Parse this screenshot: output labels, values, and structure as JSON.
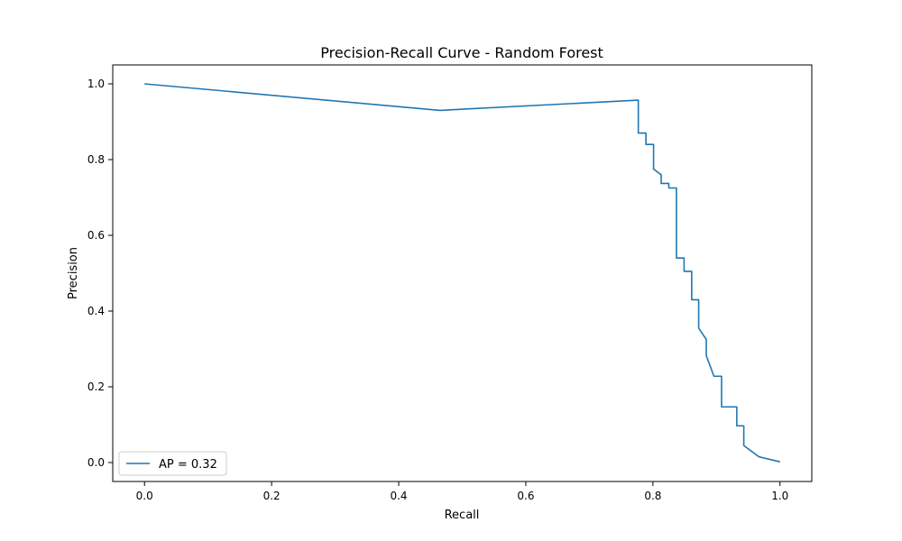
{
  "chart_data": {
    "type": "line",
    "title": "Precision-Recall Curve - Random Forest",
    "xlabel": "Recall",
    "ylabel": "Precision",
    "xlim": [
      -0.05,
      1.05
    ],
    "ylim": [
      -0.05,
      1.05
    ],
    "xticks": [
      0.0,
      0.2,
      0.4,
      0.6,
      0.8,
      1.0
    ],
    "xtick_labels": [
      "0.0",
      "0.2",
      "0.4",
      "0.6",
      "0.8",
      "1.0"
    ],
    "yticks": [
      0.0,
      0.2,
      0.4,
      0.6,
      0.8,
      1.0
    ],
    "ytick_labels": [
      "0.0",
      "0.2",
      "0.4",
      "0.6",
      "0.8",
      "1.0"
    ],
    "grid": false,
    "legend_position": "lower-left",
    "series": [
      {
        "name": "AP = 0.32",
        "color": "#1f77b4",
        "x": [
          0.0,
          0.465,
          0.777,
          0.777,
          0.789,
          0.789,
          0.801,
          0.801,
          0.813,
          0.813,
          0.825,
          0.825,
          0.837,
          0.837,
          0.849,
          0.849,
          0.861,
          0.861,
          0.872,
          0.872,
          0.884,
          0.884,
          0.896,
          0.896,
          0.908,
          0.908,
          0.932,
          0.932,
          0.943,
          0.943,
          0.967,
          1.0
        ],
        "y": [
          1.0,
          0.93,
          0.957,
          0.87,
          0.87,
          0.84,
          0.84,
          0.775,
          0.76,
          0.737,
          0.737,
          0.725,
          0.725,
          0.54,
          0.54,
          0.505,
          0.505,
          0.43,
          0.43,
          0.355,
          0.325,
          0.282,
          0.228,
          0.228,
          0.228,
          0.147,
          0.147,
          0.097,
          0.097,
          0.045,
          0.015,
          0.002
        ]
      }
    ]
  }
}
